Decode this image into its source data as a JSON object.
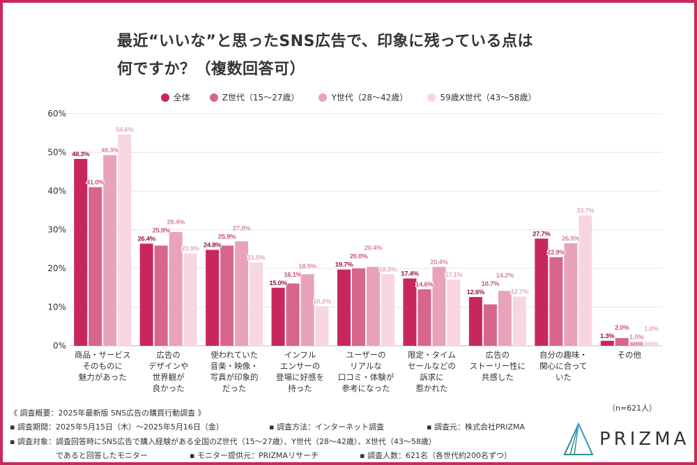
{
  "chart_data": {
    "type": "bar",
    "title": "最近“いいな”と思ったSNS広告で、印象に残っている点は\n何ですか？（複数回答可）",
    "categories": [
      "商品・サービス\nそのものに\n魅力があった",
      "広告の\nデザインや\n世界観が\n良かった",
      "使われていた\n音楽・映像・\n写真が印象的\nだった",
      "インフル\nエンサーの\n登場に好感を\n持った",
      "ユーザーの\nリアルな\n口コミ・体験が\n参考になった",
      "限定・タイム\nセールなどの\n訴求に\n惹かれた",
      "広告の\nストーリー性に\n共感した",
      "自分の趣味・\n関心に合って\nいた",
      "その他"
    ],
    "series": [
      {
        "name": "全体",
        "color": "#c8275d",
        "label_color": "#9c1444",
        "values": [
          48.3,
          26.4,
          24.8,
          15.0,
          19.7,
          17.4,
          12.6,
          27.7,
          1.3
        ]
      },
      {
        "name": "Z世代（15〜27歳）",
        "color": "#d8668c",
        "label_color": "#c8557c",
        "values": [
          41.0,
          25.9,
          25.9,
          16.1,
          20.0,
          14.6,
          10.7,
          22.9,
          2.0
        ]
      },
      {
        "name": "Y世代（28〜42歳）",
        "color": "#e8a3b8",
        "label_color": "#d58aa3",
        "values": [
          49.3,
          29.4,
          27.0,
          18.5,
          20.4,
          20.4,
          14.2,
          26.5,
          1.0
        ]
      },
      {
        "name": "59歳X世代（43〜58歳）",
        "color": "#f8d6e0",
        "label_color": "#e4a9bb",
        "values": [
          54.6,
          23.9,
          21.5,
          10.2,
          18.5,
          17.1,
          12.7,
          33.7,
          1.0
        ]
      }
    ],
    "yticks": [
      "0%",
      "10%",
      "20%",
      "30%",
      "40%",
      "50%",
      "60%"
    ],
    "ylim": [
      0,
      60
    ],
    "grid": true,
    "legend_position": "top-center",
    "xlabel": "",
    "ylabel": ""
  },
  "footer": {
    "n": "（n=621人）",
    "summary": "《 調査概要：2025年最新版 SNS広告の購買行動調査 》",
    "period": "▪ 調査期間：2025年5月15日（木）〜2025年5月16日（金）",
    "method": "▪ 調査方法：インターネット調査",
    "source": "▪ 調査元：株式会社PRIZMA",
    "target": "▪ 調査対象：調査回答時にSNS広告で購入経験がある全国のZ世代（15〜27歳）、Y世代（28〜42歳）、X世代（43〜58歳）",
    "target2": "であると回答したモニター",
    "provider": "▪ モニター提供元：PRIZMAリサーチ",
    "count": "▪ 調査人数：621名（各世代約200名ずつ）"
  },
  "logo": {
    "text": "PRIZMA"
  }
}
